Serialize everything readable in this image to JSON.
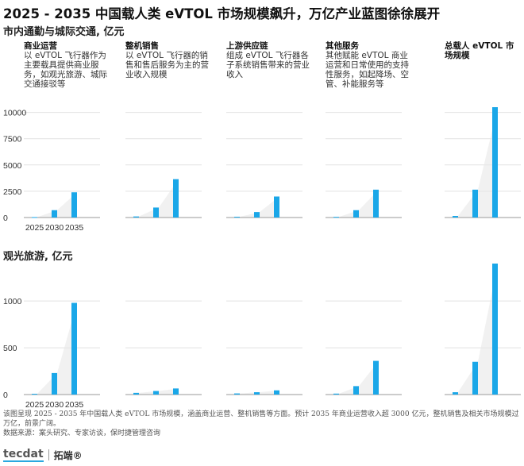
{
  "title": "2025 - 2035 中国载人类 eVTOL 市场规模飙升，万亿产业蓝图徐徐展开",
  "colors": {
    "bar": "#1aa7e8",
    "area": "#e7e7e7",
    "grid": "#e2e2e2",
    "axis": "#9a9a9a"
  },
  "columns": [
    {
      "title": "商业运营",
      "desc": "以 eVTOL 飞行器作为主要载具提供商业服务，如观光旅游、城际交通接驳等"
    },
    {
      "title": "整机销售",
      "desc": "以 eVTOL 飞行器的销售和售后服务为主的营业收入规模"
    },
    {
      "title": "上游供应链",
      "desc": "组成 eVTOL 飞行器各子系统销售带来的营业收入"
    },
    {
      "title": "其他服务",
      "desc": "其他赋能 eVTOL 商业运营和日常使用的支持性服务，如起降场、空管、补能服务等"
    },
    {
      "title": "总载人 eVTOL 市场规模",
      "desc": ""
    }
  ],
  "footnote": {
    "line1": "该图呈现 2025 - 2035 年中国载人类 eVTOL 市场规模，涵盖商业运营、整机销售等方面。预计 2035 年商业运营收入超 3000 亿元，整机销售及相关市场规模过万亿，前景广阔。",
    "line2": "数据来源：案头研究、专家访谈，保时捷管理咨询"
  },
  "brand": {
    "logo": "tecdat",
    "name": "拓端®"
  },
  "chart_data": [
    {
      "type": "bar",
      "title": "市内通勤与城际交通, 亿元",
      "categories": [
        "2025",
        "2030",
        "2035"
      ],
      "ylim": [
        0,
        10500
      ],
      "yticks": [
        0,
        2500,
        5000,
        7500,
        10000
      ],
      "series": [
        {
          "name": "商业运营",
          "values": [
            40,
            700,
            2400
          ]
        },
        {
          "name": "整机销售",
          "values": [
            100,
            950,
            3650
          ]
        },
        {
          "name": "上游供应链",
          "values": [
            70,
            520,
            2000
          ]
        },
        {
          "name": "其他服务",
          "values": [
            60,
            700,
            2650
          ]
        },
        {
          "name": "总载人 eVTOL 市场规模",
          "values": [
            150,
            2650,
            10500
          ]
        }
      ]
    },
    {
      "type": "bar",
      "title": "观光旅游, 亿元",
      "categories": [
        "2025",
        "2030",
        "2035"
      ],
      "ylim": [
        0,
        1400
      ],
      "yticks": [
        0,
        500,
        1000
      ],
      "series": [
        {
          "name": "商业运营",
          "values": [
            8,
            230,
            980
          ]
        },
        {
          "name": "整机销售",
          "values": [
            18,
            38,
            65
          ]
        },
        {
          "name": "上游供应链",
          "values": [
            12,
            25,
            45
          ]
        },
        {
          "name": "其他服务",
          "values": [
            10,
            90,
            360
          ]
        },
        {
          "name": "总载人 eVTOL 市场规模",
          "values": [
            25,
            350,
            1400
          ]
        }
      ]
    }
  ]
}
